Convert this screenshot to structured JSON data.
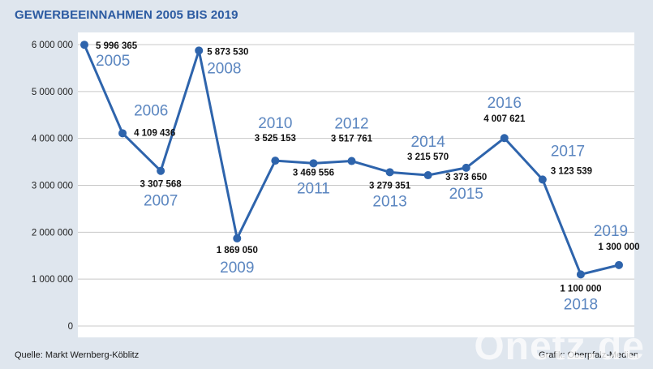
{
  "chart_data": {
    "type": "line",
    "title": "GEWERBEEINNAHMEN 2005 BIS 2019",
    "xlabel": "",
    "ylabel": "",
    "x": [
      "2005",
      "2006",
      "2007",
      "2008",
      "2009",
      "2010",
      "2011",
      "2012",
      "2013",
      "2014",
      "2015",
      "2016",
      "2017",
      "2018",
      "2019"
    ],
    "values": [
      5996365,
      4109436,
      3307568,
      5873530,
      1869050,
      3525153,
      3469556,
      3517761,
      3279351,
      3215570,
      3373650,
      4007621,
      3123539,
      1100000,
      1300000
    ],
    "value_labels": [
      "5 996 365",
      "4 109 436",
      "3 307 568",
      "5 873 530",
      "1 869 050",
      "3 525 153",
      "3 469 556",
      "3 517 761",
      "3 279 351",
      "3 215 570",
      "3 373 650",
      "4 007 621",
      "3 123 539",
      "1 100 000",
      "1 300 000"
    ],
    "ylim": [
      0,
      6000000
    ],
    "yticks": [
      0,
      1000000,
      2000000,
      3000000,
      4000000,
      5000000,
      6000000
    ],
    "ytick_labels": [
      "0",
      "1 000 000",
      "2 000 000",
      "3 000 000",
      "4 000 000",
      "5 000 000",
      "6 000 000"
    ],
    "grid": true,
    "colors": {
      "line": "#2e64ac",
      "year_label": "#5b86c0",
      "grid": "#c8c8c8",
      "title": "#2b5aa1"
    }
  },
  "footer": {
    "source": "Quelle: Markt Wernberg-Köblitz",
    "credit": "Grafik: Oberpfalz-Medien",
    "watermark": "Onetz.de"
  }
}
